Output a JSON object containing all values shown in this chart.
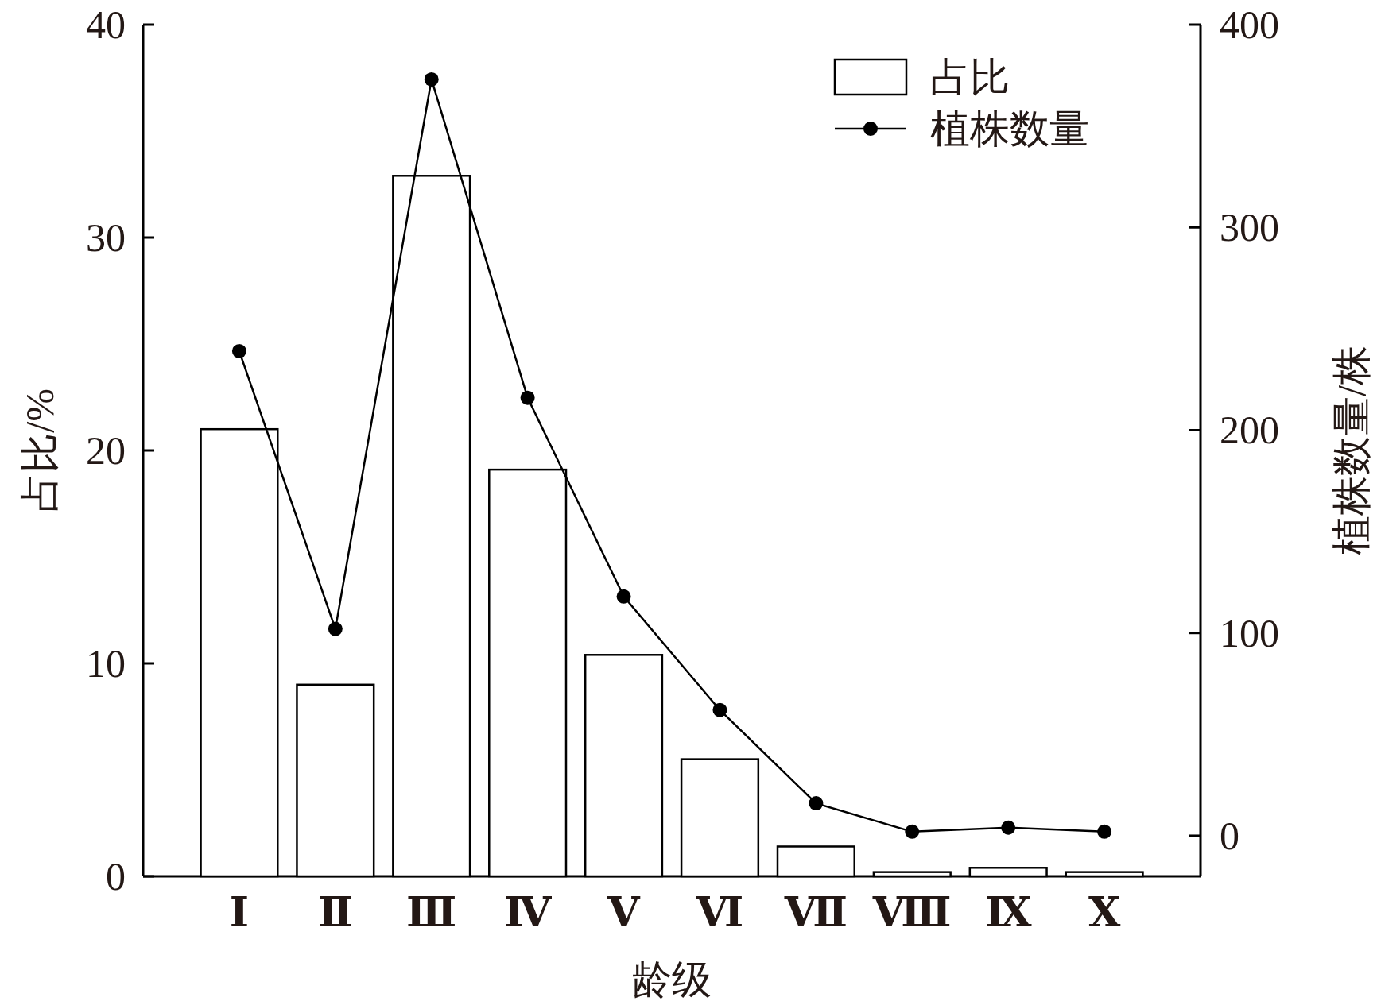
{
  "chart_data": {
    "type": "bar",
    "categories": [
      "Ⅰ",
      "Ⅱ",
      "Ⅲ",
      "Ⅳ",
      "Ⅴ",
      "Ⅵ",
      "Ⅶ",
      "Ⅷ",
      "Ⅸ",
      "Ⅹ"
    ],
    "series": [
      {
        "name": "占比",
        "color": "#ffffff",
        "values": [
          21.0,
          9.0,
          32.9,
          19.1,
          10.4,
          5.5,
          1.4,
          0.2,
          0.4,
          0.2
        ]
      },
      {
        "name": "植株数量",
        "type": "line",
        "axis": "y2",
        "color": "#000000",
        "values": [
          239,
          102,
          373,
          216,
          118,
          62,
          16,
          2,
          4,
          2
        ]
      }
    ],
    "xlabel": "龄级",
    "ylabel": "占比/%",
    "y2label": "植株数量/株",
    "ylim": [
      0,
      40
    ],
    "yticks": [
      0,
      10,
      20,
      30,
      40
    ],
    "y2lim": [
      -20,
      400
    ],
    "y2ticks": [
      0,
      100,
      200,
      300,
      400
    ],
    "legend": "top right",
    "marker": "circle",
    "line_style": "solid",
    "grid": false
  }
}
